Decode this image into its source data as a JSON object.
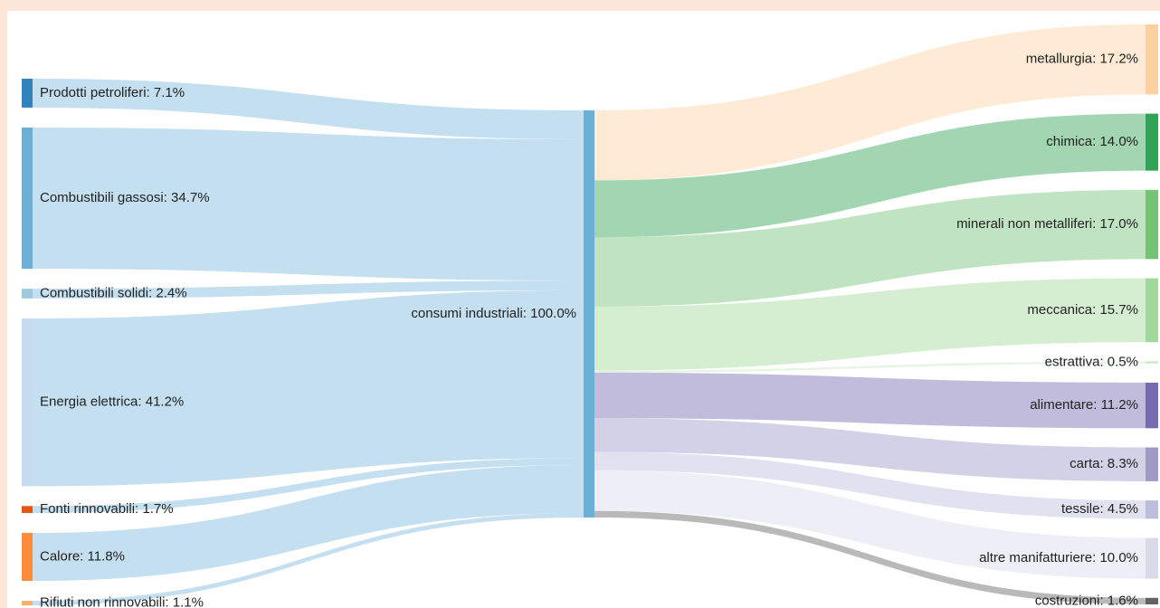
{
  "chart_data": {
    "type": "sankey",
    "sources": [
      {
        "label": "Prodotti petroliferi: 7.1%",
        "value": 7.1,
        "color": "#3182bd"
      },
      {
        "label": "Combustibili gassosi: 34.7%",
        "value": 34.7,
        "color": "#6baed6"
      },
      {
        "label": "Combustibili solidi: 2.4%",
        "value": 2.4,
        "color": "#9ecae1"
      },
      {
        "label": "Energia elettrica: 41.2%",
        "value": 41.2,
        "color": "#c6dbef"
      },
      {
        "label": "Fonti rinnovabili: 1.7%",
        "value": 1.7,
        "color": "#e6550d"
      },
      {
        "label": "Calore: 11.8%",
        "value": 11.8,
        "color": "#fd8d3c"
      },
      {
        "label": "Rifiuti non rinnovabili: 1.1%",
        "value": 1.1,
        "color": "#fdae6b"
      }
    ],
    "center": {
      "label": "consumi industriali: 100.0%",
      "value": 100,
      "color": "#6baed6"
    },
    "targets": [
      {
        "label": "metallurgia: 17.2%",
        "value": 17.2,
        "color": "#fdd0a2"
      },
      {
        "label": "chimica: 14.0%",
        "value": 14.0,
        "color": "#31a354"
      },
      {
        "label": "minerali non metalliferi: 17.0%",
        "value": 17.0,
        "color": "#74c476"
      },
      {
        "label": "meccanica: 15.7%",
        "value": 15.7,
        "color": "#a1d99b"
      },
      {
        "label": "estrattiva: 0.5%",
        "value": 0.5,
        "color": "#c7e9c0"
      },
      {
        "label": "alimentare: 11.2%",
        "value": 11.2,
        "color": "#756bb1"
      },
      {
        "label": "carta: 8.3%",
        "value": 8.3,
        "color": "#9e9ac8"
      },
      {
        "label": "tessile: 4.5%",
        "value": 4.5,
        "color": "#bcbddc"
      },
      {
        "label": "altre manifatturiere: 10.0%",
        "value": 10.0,
        "color": "#dadaeb"
      },
      {
        "label": "costruzioni: 1.6%",
        "value": 1.6,
        "color": "#636363"
      }
    ]
  }
}
